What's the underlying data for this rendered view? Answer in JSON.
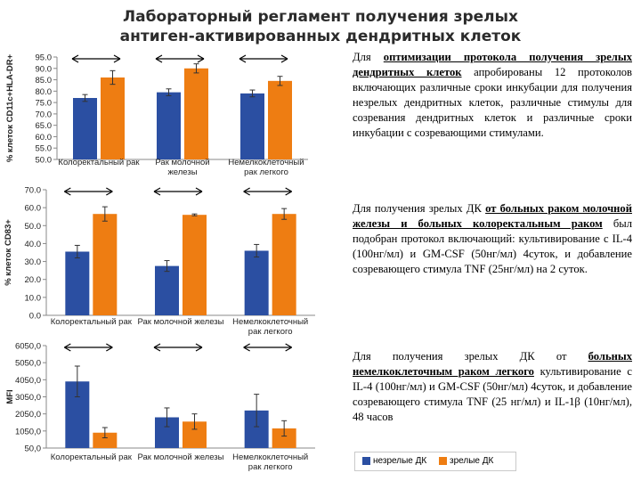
{
  "title_line1": "Лабораторный регламент получения зрелых",
  "title_line2": "антиген-активированных дендритных клеток",
  "colors": {
    "immature": "#2b4fa2",
    "mature": "#ee7d12"
  },
  "legend": {
    "immature": "незрелые ДК",
    "mature": "зрелые ДК"
  },
  "paragraphs": {
    "p1": {
      "pre": "Для ",
      "hl": "оптимизации протокола получения зрелых дендритных клеток",
      "post": " апробированы 12 протоколов включающих различные сроки инкубации для получения незрелых дендритных клеток, различные стимулы для созревания дендритных клеток и различные сроки инкубации с созревающими стимулами."
    },
    "p2": {
      "pre": "Для получения зрелых ДК ",
      "hl": "от больных раком молочной железы и больных колоректальным раком",
      "post": " был подобран протокол включающий: культивирование с IL-4 (100нг/мл) и GM-CSF (50нг/мл) 4суток, и добавление созревающего стимула TNF (25нг/мл) на 2 суток."
    },
    "p3": {
      "pre": "Для получения зрелых ДК от ",
      "hl": "больных немелкоклеточным раком легкого",
      "post": " культивирование с IL-4 (100нг/мл) и GM-CSF (50нг/мл) 4суток, и добавление созревающего стимула TNF (25 нг/мл) и IL-1β (10нг/мл), 48 часов"
    }
  },
  "chart_data": [
    {
      "type": "bar",
      "ylabel": "% клеток CD11c+HLA-DR+",
      "ylim": [
        50,
        95
      ],
      "yticks": [
        "50.0",
        "55.0",
        "60.0",
        "65.0",
        "70.0",
        "75.0",
        "80.0",
        "85.0",
        "90.0",
        "95.0"
      ],
      "categories": [
        "Колоректальный рак",
        "Рак молочной железы",
        "Немелкоклеточный рак легкого"
      ],
      "category_lines": [
        [
          "Колоректальный рак"
        ],
        [
          "Рак молочной",
          "железы"
        ],
        [
          "Немелкоклеточный",
          "рак легкого"
        ]
      ],
      "series": [
        {
          "key": "immature",
          "values": [
            77,
            79.5,
            79
          ],
          "errors": [
            1.5,
            1.5,
            1.5
          ]
        },
        {
          "key": "mature",
          "values": [
            86,
            90,
            84.5
          ],
          "errors": [
            3,
            2,
            2
          ]
        }
      ]
    },
    {
      "type": "bar",
      "ylabel": "% клеток CD83+",
      "ylim": [
        0,
        70
      ],
      "yticks": [
        "0.0",
        "10.0",
        "20.0",
        "30.0",
        "40.0",
        "50.0",
        "60.0",
        "70.0"
      ],
      "categories": [
        "Колоректальный рак",
        "Рак молочной железы",
        "Немелкоклеточный рак легкого"
      ],
      "category_lines": [
        [
          "Колоректальный рак"
        ],
        [
          "Рак молочной железы"
        ],
        [
          "Немелкоклеточный",
          "рак легкого"
        ]
      ],
      "series": [
        {
          "key": "immature",
          "values": [
            35.5,
            27.5,
            36
          ],
          "errors": [
            3.5,
            3,
            3.5
          ]
        },
        {
          "key": "mature",
          "values": [
            56.5,
            56,
            56.5
          ],
          "errors": [
            4,
            0.5,
            3
          ]
        }
      ]
    },
    {
      "type": "bar",
      "ylabel": "MFI",
      "ylim": [
        50,
        6050
      ],
      "yticks": [
        "50,0",
        "1050,0",
        "2050,0",
        "3050,0",
        "4050,0",
        "5050,0",
        "6050,0"
      ],
      "categories": [
        "Колоректальный рак",
        "Рак молочной железы",
        "Немелкоклеточный рак легкого"
      ],
      "category_lines": [
        [
          "Колоректальный рак"
        ],
        [
          "Рак молочной железы"
        ],
        [
          "Немелкоклеточный",
          "рак легкого"
        ]
      ],
      "series": [
        {
          "key": "immature",
          "values": [
            3950,
            1850,
            2250
          ],
          "errors": [
            900,
            550,
            950
          ]
        },
        {
          "key": "mature",
          "values": [
            950,
            1600,
            1200
          ],
          "errors": [
            300,
            450,
            450
          ]
        }
      ]
    }
  ]
}
